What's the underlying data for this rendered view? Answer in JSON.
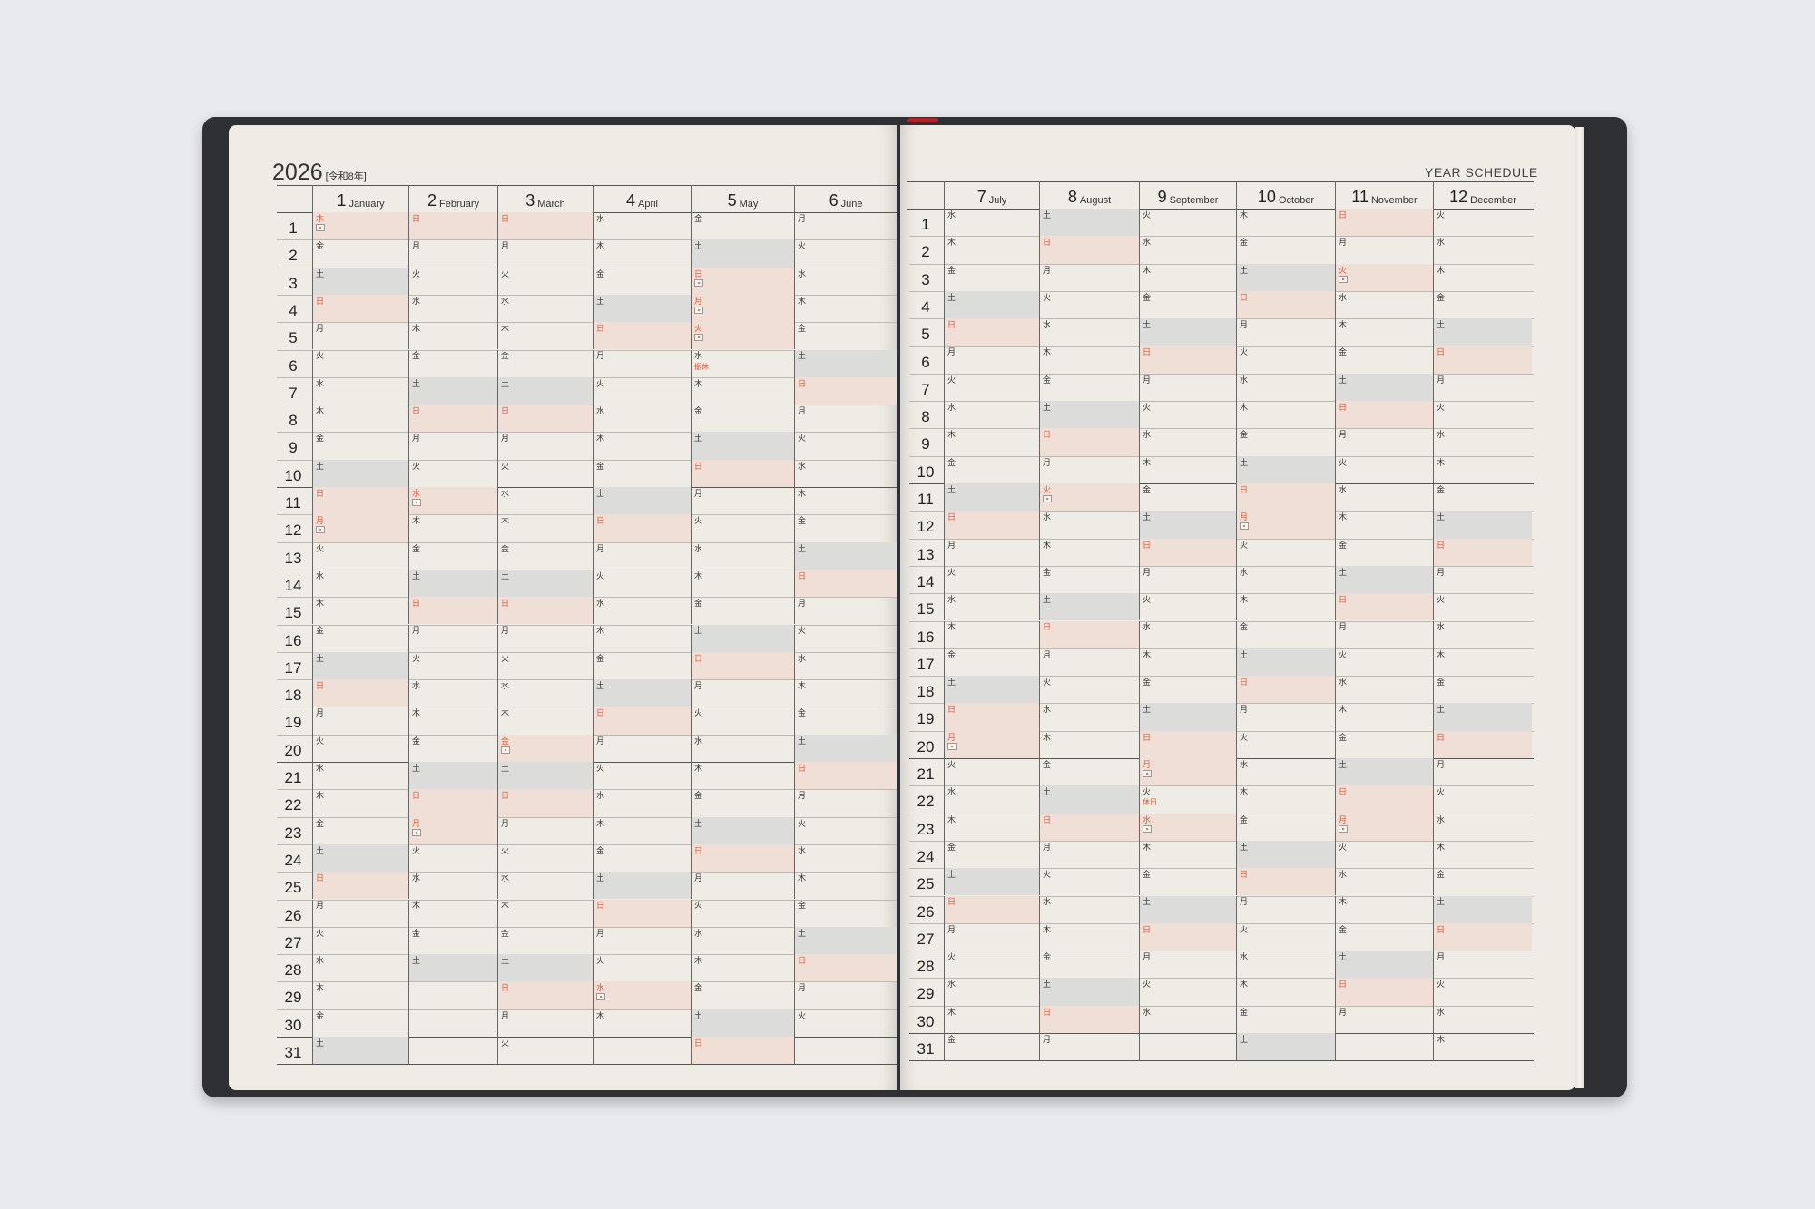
{
  "year_title": "2026",
  "era": "[令和8年]",
  "right_title": "YEAR SCHEDULE",
  "months": [
    {
      "num": "1",
      "name": "January",
      "weekdays": "木金土日月火水木金土日月火水木金土日月火水木金土日月火水木金土",
      "holidays": [
        1,
        12
      ]
    },
    {
      "num": "2",
      "name": "February",
      "weekdays": "日月火水木金土日月火水木金土日月火水木金土日月火水木金土",
      "holidays": [
        11,
        23
      ]
    },
    {
      "num": "3",
      "name": "March",
      "weekdays": "日月火水木金土日月火水木金土日月火水木金土日月火水木金土日月火",
      "holidays": [
        20
      ]
    },
    {
      "num": "4",
      "name": "April",
      "weekdays": "水木金土日月火水木金土日月火水木金土日月火水木金土日月火水木",
      "holidays": [
        29
      ]
    },
    {
      "num": "5",
      "name": "May",
      "weekdays": "金土日月火水木金土日月火水木金土日月火水木金土日月火水木金土日",
      "holidays": [
        3,
        4,
        5
      ],
      "notes": {
        "6": "振休"
      }
    },
    {
      "num": "6",
      "name": "June",
      "weekdays": "月火水木金土日月火水木金土日月火水木金土日月火水木金土日月火",
      "holidays": []
    },
    {
      "num": "7",
      "name": "July",
      "weekdays": "水木金土日月火水木金土日月火水木金土日月火水木金土日月火水木金",
      "holidays": [
        20
      ]
    },
    {
      "num": "8",
      "name": "August",
      "weekdays": "土日月火水木金土日月火水木金土日月火水木金土日月火水木金土日月",
      "holidays": [
        11
      ]
    },
    {
      "num": "9",
      "name": "September",
      "weekdays": "火水木金土日月火水木金土日月火水木金土日月火水木金土日月火水",
      "holidays": [
        21,
        23
      ],
      "notes": {
        "22": "休日"
      }
    },
    {
      "num": "10",
      "name": "October",
      "weekdays": "木金土日月火水木金土日月火水木金土日月火水木金土日月火水木金土",
      "holidays": [
        12
      ]
    },
    {
      "num": "11",
      "name": "November",
      "weekdays": "日月火水木金土日月火水木金土日月火水木金土日月火水木金土日月",
      "holidays": [
        3,
        23
      ]
    },
    {
      "num": "12",
      "name": "December",
      "weekdays": "火水木金土日月火水木金土日月火水木金土日月火水木金土日月火水木",
      "holidays": []
    }
  ],
  "days": [
    "1",
    "2",
    "3",
    "4",
    "5",
    "6",
    "7",
    "8",
    "9",
    "10",
    "11",
    "12",
    "13",
    "14",
    "15",
    "16",
    "17",
    "18",
    "19",
    "20",
    "21",
    "22",
    "23",
    "24",
    "25",
    "26",
    "27",
    "28",
    "29",
    "30",
    "31"
  ],
  "colors": {
    "sunday_holiday": "#d5573a",
    "sunday_fill": "#efdfd6",
    "saturday_fill": "#dcdcda",
    "paper": "#efece5",
    "cover": "#2e3034"
  }
}
